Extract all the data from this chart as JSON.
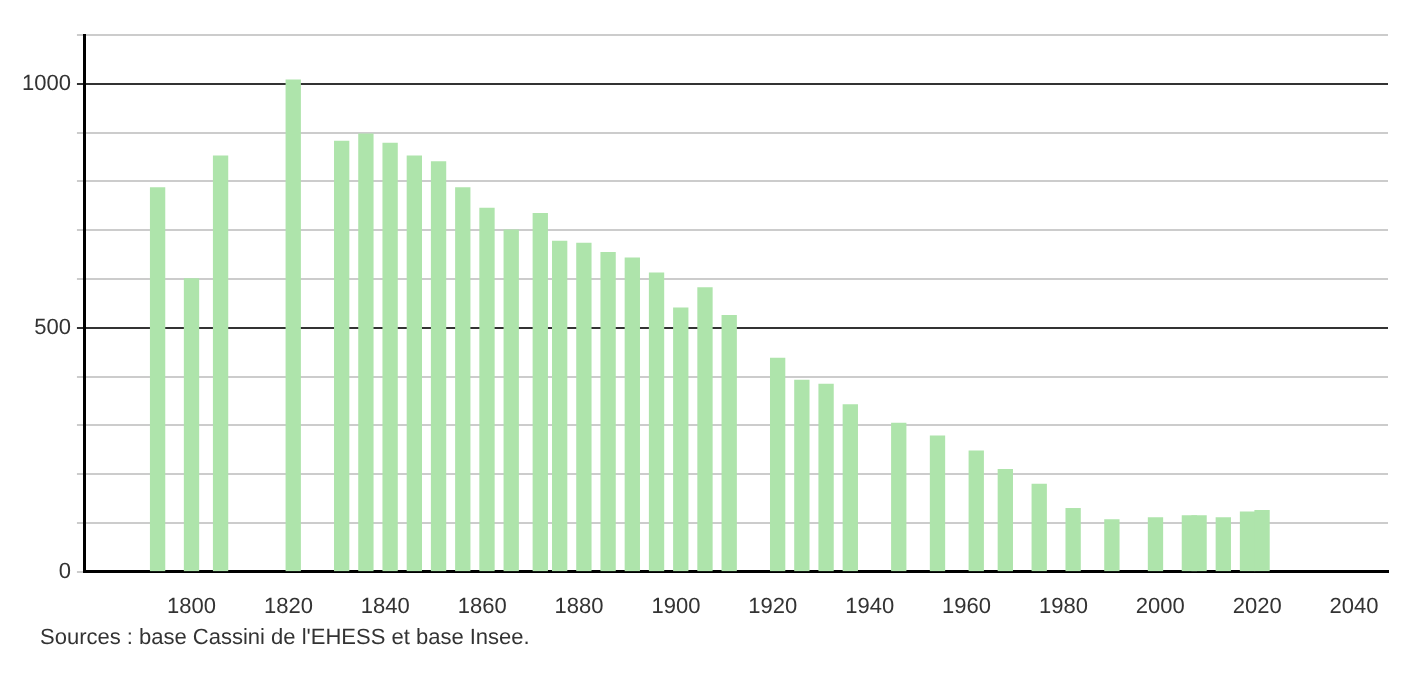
{
  "chart_data": {
    "type": "bar",
    "x": [
      1793,
      1800,
      1806,
      1821,
      1831,
      1836,
      1841,
      1846,
      1851,
      1856,
      1861,
      1866,
      1872,
      1876,
      1881,
      1886,
      1891,
      1896,
      1901,
      1906,
      1911,
      1921,
      1926,
      1931,
      1936,
      1946,
      1954,
      1962,
      1968,
      1975,
      1982,
      1990,
      1999,
      2006,
      2008,
      2013,
      2018,
      2021
    ],
    "values": [
      787,
      600,
      852,
      1008,
      882,
      897,
      878,
      852,
      840,
      787,
      745,
      700,
      734,
      677,
      673,
      654,
      643,
      612,
      540,
      582,
      525,
      437,
      392,
      384,
      342,
      304,
      278,
      247,
      209,
      179,
      129,
      106,
      110,
      114,
      114,
      110,
      122,
      125
    ],
    "color": "#aee4ab",
    "xlim": [
      1778,
      2047
    ],
    "xticks": [
      1800,
      1820,
      1840,
      1860,
      1880,
      1900,
      1920,
      1940,
      1960,
      1980,
      2000,
      2020,
      2040
    ],
    "ylim": [
      0,
      1100
    ],
    "yticks": [
      0,
      {
        "value": 100,
        "label": null
      },
      {
        "value": 200,
        "label": null
      },
      {
        "value": 300,
        "label": null
      },
      {
        "value": 400,
        "label": null
      },
      500,
      {
        "value": 600,
        "label": null
      },
      {
        "value": 700,
        "label": null
      },
      {
        "value": 800,
        "label": null
      },
      {
        "value": 900,
        "label": null
      },
      1000,
      {
        "value": 1100,
        "label": null
      }
    ],
    "grid": "y",
    "annotations": [
      "Sources : base Cassini de l'EHESS et base Insee."
    ]
  }
}
